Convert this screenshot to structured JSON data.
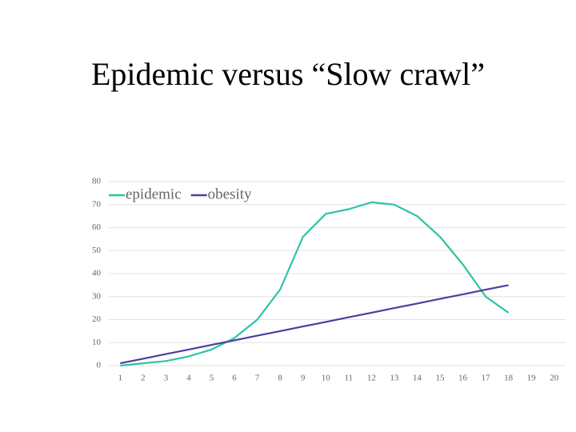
{
  "title": "Epidemic versus “Slow crawl”",
  "chart_data": {
    "type": "line",
    "categories": [
      "1",
      "2",
      "3",
      "4",
      "5",
      "6",
      "7",
      "8",
      "9",
      "10",
      "11",
      "12",
      "13",
      "14",
      "15",
      "16",
      "17",
      "18",
      "19",
      "20"
    ],
    "series": [
      {
        "name": "epidemic",
        "color": "#2cc4a5",
        "values": [
          0,
          1,
          2,
          4,
          7,
          12,
          20,
          33,
          56,
          66,
          68,
          71,
          70,
          65,
          56,
          44,
          30,
          23,
          null,
          null
        ]
      },
      {
        "name": "obesity",
        "color": "#4b3f9e",
        "values": [
          1,
          3,
          5,
          7,
          9,
          11,
          13,
          15,
          17,
          19,
          21,
          23,
          25,
          27,
          29,
          31,
          33,
          35,
          null,
          null
        ]
      }
    ],
    "ylim": [
      0,
      80
    ],
    "yticks": [
      0,
      10,
      20,
      30,
      40,
      50,
      60,
      70,
      80
    ],
    "grid": true,
    "legend": "top-left"
  }
}
